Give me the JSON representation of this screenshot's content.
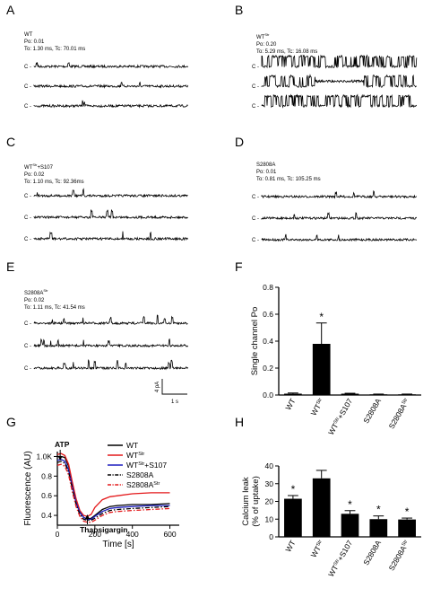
{
  "panels": {
    "A": {
      "letter": "A",
      "label": "WT",
      "po": "Po: 0.01",
      "times": "To: 1.30 ms, Tc: 70.01 ms"
    },
    "B": {
      "letter": "B",
      "label": "WT",
      "label_sup": "Str",
      "po": "Po: 0.20",
      "times": "To: 5.29 ms, Tc: 16.08 ms"
    },
    "C": {
      "letter": "C",
      "label": "WT",
      "label_sup": "Str",
      "label_suffix": "+S107",
      "po": "Po: 0.02",
      "times": "To: 1.10 ms, Tc: 92.36ms"
    },
    "D": {
      "letter": "D",
      "label": "S2808A",
      "po": "Po: 0.01",
      "times": "To: 0.81 ms, Tc: 105.25 ms"
    },
    "E": {
      "letter": "E",
      "label": "S2808A",
      "label_sup": "Str",
      "po": "Po: 0.02",
      "times": "To: 1.11 ms, Tc: 41.54 ms"
    },
    "F": {
      "letter": "F"
    },
    "G": {
      "letter": "G"
    },
    "H": {
      "letter": "H"
    }
  },
  "closed_label": "C",
  "scalebar": {
    "y_label": "4 pA",
    "x_label": "1 s"
  },
  "colors": {
    "black": "#000000",
    "red": "#e41a1c",
    "blue": "#1f1fbf"
  },
  "chart_data": [
    {
      "panel": "F",
      "type": "bar",
      "ylabel": "Single channel Po",
      "ylim": [
        0,
        0.8
      ],
      "yticks": [
        "0.0",
        "0.2",
        "0.4",
        "0.6",
        "0.8"
      ],
      "categories": [
        "WT",
        "WT^Str",
        "WT^Str+S107",
        "S2808A",
        "S2808A^Str"
      ],
      "values": [
        0.01,
        0.38,
        0.01,
        0.005,
        0.005
      ],
      "errors": [
        0.005,
        0.155,
        0.003,
        0.002,
        0.002
      ],
      "significance": [
        "",
        "*",
        "",
        "",
        ""
      ]
    },
    {
      "panel": "G",
      "type": "line",
      "xlabel": "Time [s]",
      "ylabel": "Fluorescence (AU)",
      "xlim": [
        0,
        650
      ],
      "ylim": [
        0.3,
        1.05
      ],
      "xticks": [
        "0",
        "200",
        "400",
        "600"
      ],
      "yticks": [
        "0.4",
        "0.6",
        "0.8",
        "1.0K"
      ],
      "annotations": [
        "ATP",
        "Thapsigargin"
      ],
      "series": [
        {
          "name": "WT",
          "color": "#000000",
          "dash": "solid",
          "x": [
            0,
            20,
            40,
            60,
            80,
            100,
            120,
            140,
            160,
            180,
            200,
            240,
            280,
            320,
            400,
            500,
            600
          ],
          "y": [
            1.0,
            1.0,
            0.99,
            0.9,
            0.72,
            0.55,
            0.44,
            0.38,
            0.36,
            0.37,
            0.4,
            0.46,
            0.49,
            0.5,
            0.51,
            0.51,
            0.52
          ]
        },
        {
          "name": "WT^Str",
          "color": "#e41a1c",
          "dash": "solid",
          "x": [
            0,
            20,
            40,
            60,
            80,
            100,
            120,
            140,
            160,
            180,
            200,
            240,
            280,
            320,
            400,
            500,
            600
          ],
          "y": [
            1.02,
            1.03,
            1.01,
            0.92,
            0.74,
            0.57,
            0.45,
            0.4,
            0.39,
            0.41,
            0.48,
            0.56,
            0.59,
            0.6,
            0.62,
            0.63,
            0.63
          ]
        },
        {
          "name": "WT^Str+S107",
          "color": "#1f1fbf",
          "dash": "solid",
          "x": [
            0,
            20,
            40,
            60,
            80,
            100,
            120,
            140,
            160,
            180,
            200,
            240,
            280,
            320,
            400,
            500,
            600
          ],
          "y": [
            0.96,
            0.97,
            0.95,
            0.86,
            0.69,
            0.53,
            0.43,
            0.38,
            0.36,
            0.36,
            0.39,
            0.44,
            0.47,
            0.48,
            0.49,
            0.5,
            0.5
          ]
        },
        {
          "name": "S2808A",
          "color": "#000000",
          "dash": "dashdot",
          "x": [
            0,
            20,
            40,
            60,
            80,
            100,
            120,
            140,
            160,
            180,
            200,
            240,
            280,
            320,
            400,
            500,
            600
          ],
          "y": [
            0.94,
            0.95,
            0.93,
            0.84,
            0.67,
            0.51,
            0.41,
            0.36,
            0.35,
            0.35,
            0.37,
            0.42,
            0.45,
            0.46,
            0.47,
            0.48,
            0.49
          ]
        },
        {
          "name": "S2808A^Str",
          "color": "#e41a1c",
          "dash": "dashdot",
          "x": [
            0,
            20,
            40,
            60,
            80,
            100,
            120,
            140,
            160,
            180,
            200,
            240,
            280,
            320,
            400,
            500,
            600
          ],
          "y": [
            0.91,
            0.92,
            0.9,
            0.81,
            0.64,
            0.49,
            0.39,
            0.34,
            0.33,
            0.33,
            0.35,
            0.4,
            0.43,
            0.44,
            0.45,
            0.46,
            0.47
          ]
        }
      ]
    },
    {
      "panel": "H",
      "type": "bar",
      "ylabel": "Calcium leak\n(% of uptake)",
      "ylim": [
        0,
        40
      ],
      "yticks": [
        "0",
        "10",
        "20",
        "30",
        "40"
      ],
      "categories": [
        "WT",
        "WT^Str",
        "WT^Str+S107",
        "S2808A",
        "S2808A^Str"
      ],
      "values": [
        21.5,
        33,
        13,
        10,
        9.8
      ],
      "errors": [
        1.8,
        4.5,
        1.8,
        1.8,
        0.8
      ],
      "significance": [
        "*",
        "",
        "*",
        "*",
        "*"
      ]
    }
  ]
}
